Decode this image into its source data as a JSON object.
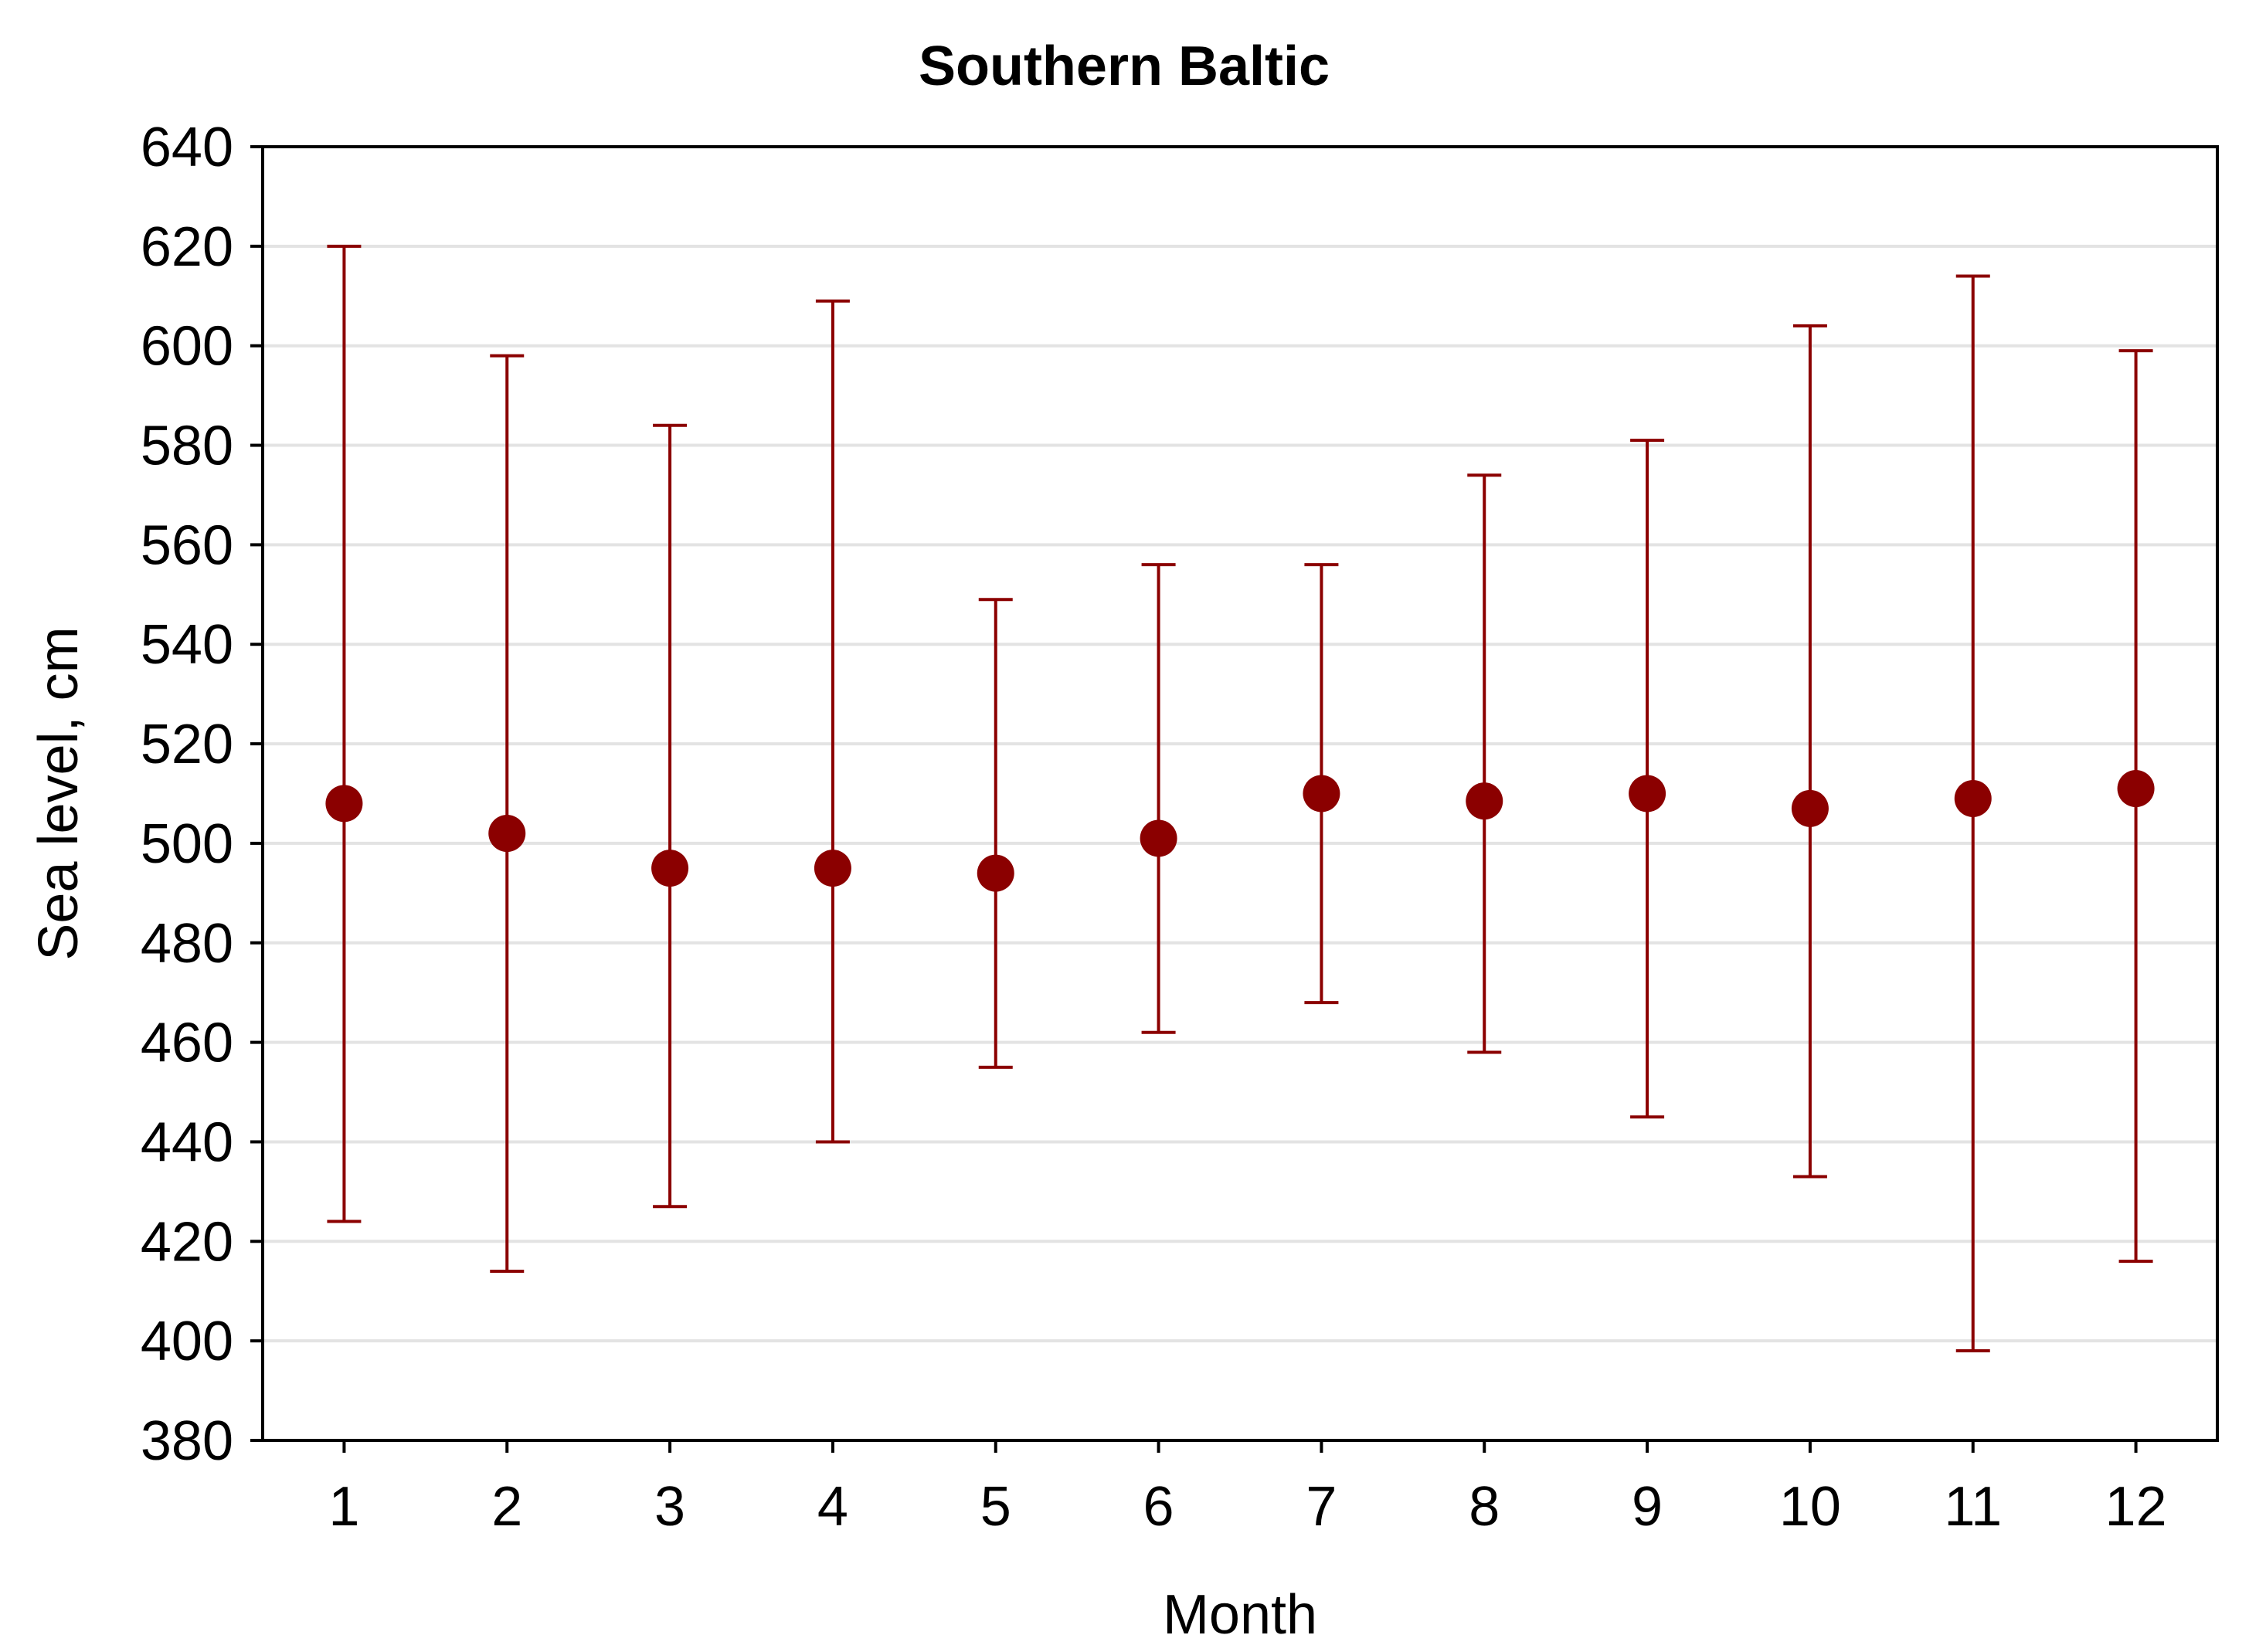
{
  "chart_data": {
    "type": "scatter",
    "title": "Southern Baltic",
    "xlabel": "Month",
    "ylabel": "Sea level, cm",
    "xlim": [
      0.5,
      12.5
    ],
    "ylim": [
      380,
      640
    ],
    "yticks": [
      380,
      400,
      420,
      440,
      460,
      480,
      500,
      520,
      540,
      560,
      580,
      600,
      620,
      640
    ],
    "xticks": [
      1,
      2,
      3,
      4,
      5,
      6,
      7,
      8,
      9,
      10,
      11,
      12
    ],
    "grid": "horizontal",
    "legend": "none",
    "series": [
      {
        "x": [
          1,
          2,
          3,
          4,
          5,
          6,
          7,
          8,
          9,
          10,
          11,
          12
        ],
        "y": [
          508,
          502,
          495,
          495,
          494,
          501,
          510,
          508.5,
          510,
          507,
          509,
          511
        ],
        "y_low": [
          424,
          414,
          427,
          440,
          455,
          462,
          468,
          458,
          445,
          433,
          398,
          416
        ],
        "y_high": [
          620,
          598,
          584,
          609,
          549,
          556,
          556,
          574,
          581,
          604,
          614,
          599
        ]
      }
    ],
    "colors": {
      "marker": "#8b0000",
      "errorbar": "#8b0000",
      "grid": "#e3e3e3",
      "axis": "#000000"
    }
  }
}
